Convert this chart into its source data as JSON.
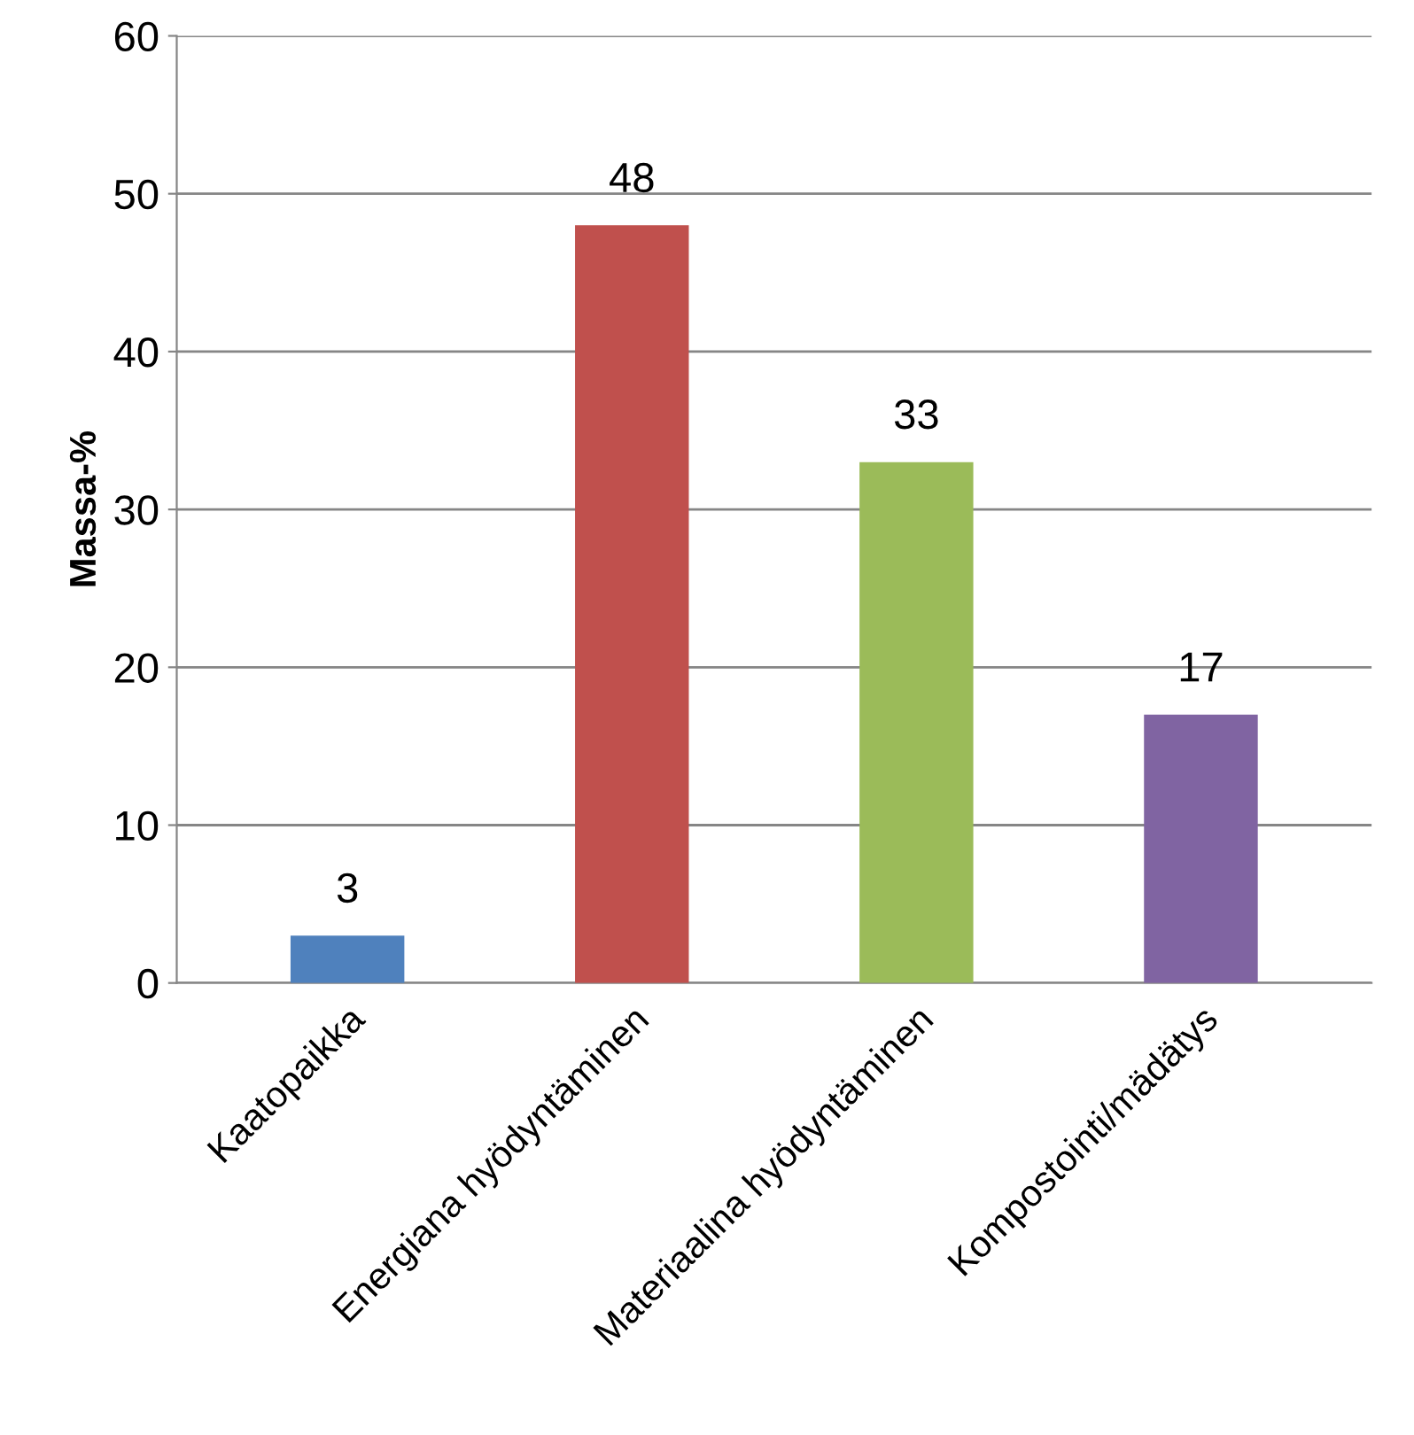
{
  "chart_data": {
    "type": "bar",
    "ylabel": "Massa-%",
    "categories": [
      "Kaatopaikka",
      "Energiana hyödyntäminen",
      "Materiaalina hyödyntäminen",
      "Kompostointi/mädätys"
    ],
    "values": [
      3,
      48,
      33,
      17
    ],
    "colors": [
      "#4f81bd",
      "#c0504d",
      "#9bbb59",
      "#8064a2"
    ],
    "ylim": [
      0,
      60
    ],
    "yticks": [
      0,
      10,
      20,
      30,
      40,
      50,
      60
    ],
    "grid": "y",
    "data_labels": true
  }
}
